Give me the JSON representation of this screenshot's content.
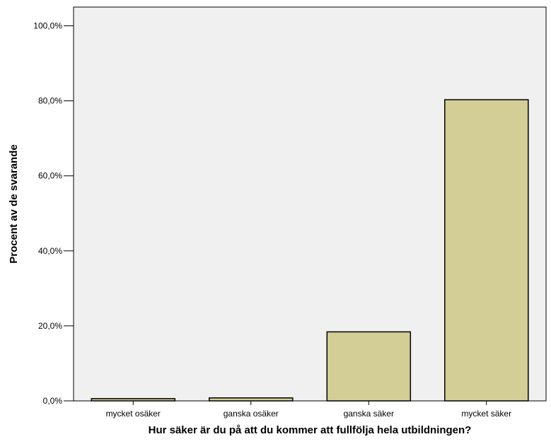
{
  "chart_data": {
    "type": "bar",
    "title": "",
    "xlabel": "Hur säker är du på att du kommer att fullfölja hela utbildningen?",
    "ylabel": "Procent av de svarande",
    "categories": [
      "mycket osäker",
      "ganska osäker",
      "ganska säker",
      "mycket säker"
    ],
    "values": [
      0.6,
      0.8,
      18.4,
      80.3
    ],
    "ylim": [
      0,
      100
    ],
    "yticks": [
      0,
      20,
      40,
      60,
      80,
      100
    ],
    "ytick_labels": [
      "0,0%",
      "20,0%",
      "40,0%",
      "60,0%",
      "80,0%",
      "100,0%"
    ],
    "grid": false,
    "legend": "none",
    "colors": {
      "plot_background": "#f0f0f0",
      "bar_fill": "#d3ce96",
      "bar_stroke": "#000000"
    }
  }
}
